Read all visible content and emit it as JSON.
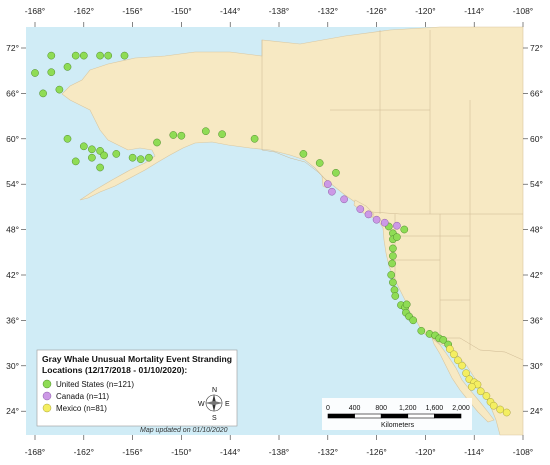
{
  "map": {
    "lon_ticks": [
      "-168°",
      "-162°",
      "-156°",
      "-150°",
      "-144°",
      "-138°",
      "-132°",
      "-126°",
      "-120°",
      "-114°",
      "-108°"
    ],
    "lat_ticks": [
      "72°",
      "66°",
      "60°",
      "54°",
      "48°",
      "42°",
      "36°",
      "30°",
      "24°"
    ],
    "colors": {
      "water": "#d0ecf6",
      "land": "#f7e9c3",
      "us": "#8fdc55",
      "canada": "#cc99e6",
      "mexico": "#f4ee61"
    }
  },
  "legend": {
    "title_line1": "Gray Whale Unusual Mortality Event Stranding",
    "title_line2": "Locations (12/17/2018 - 01/10/2020):",
    "items": [
      {
        "label": "United States (n=121)",
        "color": "#8fdc55"
      },
      {
        "label": "Canada (n=11)",
        "color": "#cc99e6"
      },
      {
        "label": "Mexico (n=81)",
        "color": "#f4ee61"
      }
    ],
    "compass": {
      "n": "N",
      "s": "S",
      "e": "E",
      "w": "W"
    }
  },
  "scale": {
    "labels": [
      "0",
      "400",
      "800",
      "1,200",
      "1,600",
      "2,000"
    ],
    "unit": "Kilometers"
  },
  "note": "Map updated on 01/10/2020",
  "strandings": {
    "us": [
      [
        -166,
        71
      ],
      [
        -163,
        71
      ],
      [
        -162,
        71
      ],
      [
        -160,
        71
      ],
      [
        -159,
        71
      ],
      [
        -157,
        71
      ],
      [
        -168,
        68.7
      ],
      [
        -166,
        68.8
      ],
      [
        -164,
        69.5
      ],
      [
        -167,
        66
      ],
      [
        -165,
        66.5
      ],
      [
        -164,
        60
      ],
      [
        -162,
        59
      ],
      [
        -161,
        58.6
      ],
      [
        -160,
        58.4
      ],
      [
        -159.5,
        57.8
      ],
      [
        -158,
        58
      ],
      [
        -161,
        57.5
      ],
      [
        -163,
        57
      ],
      [
        -160,
        56.2
      ],
      [
        -156,
        57.5
      ],
      [
        -155,
        57.3
      ],
      [
        -154,
        57.5
      ],
      [
        -153,
        59.5
      ],
      [
        -151,
        60.5
      ],
      [
        -150,
        60.4
      ],
      [
        -147,
        61
      ],
      [
        -145,
        60.6
      ],
      [
        -141,
        60
      ],
      [
        -135,
        58
      ],
      [
        -133,
        56.8
      ],
      [
        -131,
        55.5
      ],
      [
        -124.5,
        48.4
      ],
      [
        -124,
        47.5
      ],
      [
        -124,
        46.7
      ],
      [
        -124,
        45.5
      ],
      [
        -124,
        44.5
      ],
      [
        -123.5,
        47
      ],
      [
        -122.6,
        48
      ],
      [
        -124.1,
        43.5
      ],
      [
        -124.2,
        42
      ],
      [
        -124,
        41
      ],
      [
        -123.8,
        40
      ],
      [
        -123.7,
        39.2
      ],
      [
        -123,
        38
      ],
      [
        -122.5,
        37.7
      ],
      [
        -122.4,
        37
      ],
      [
        -122,
        36.5
      ],
      [
        -122.3,
        38.1
      ],
      [
        -121.5,
        36
      ],
      [
        -120.5,
        34.6
      ],
      [
        -119.5,
        34.2
      ],
      [
        -118.8,
        34
      ],
      [
        -118.3,
        33.6
      ],
      [
        -117.8,
        33.4
      ],
      [
        -117.2,
        32.8
      ]
    ],
    "canada": [
      [
        -132,
        54
      ],
      [
        -131.5,
        53
      ],
      [
        -130,
        52
      ],
      [
        -128,
        50.7
      ],
      [
        -127,
        50
      ],
      [
        -126,
        49.3
      ],
      [
        -125,
        48.9
      ],
      [
        -123.5,
        48.5
      ]
    ],
    "mexico": [
      [
        -117,
        32.2
      ],
      [
        -116.5,
        31.5
      ],
      [
        -116,
        30.7
      ],
      [
        -115.5,
        30
      ],
      [
        -115,
        29
      ],
      [
        -114.6,
        28.2
      ],
      [
        -114,
        27.8
      ],
      [
        -113.6,
        27.5
      ],
      [
        -114.3,
        27.2
      ],
      [
        -113.2,
        26.6
      ],
      [
        -112.5,
        26
      ],
      [
        -112,
        25.2
      ],
      [
        -111.6,
        24.7
      ],
      [
        -110.8,
        24.2
      ],
      [
        -110,
        23.8
      ]
    ]
  }
}
